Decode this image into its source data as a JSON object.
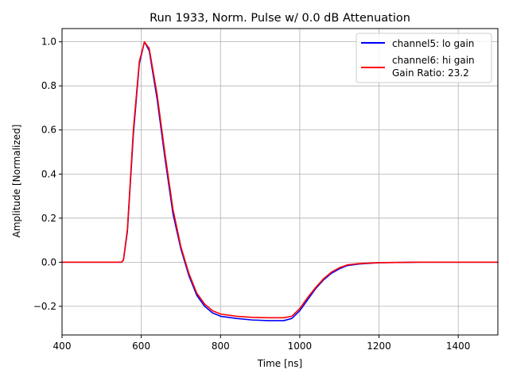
{
  "chart_data": {
    "type": "line",
    "title": "Run 1933, Norm. Pulse w/ 0.0 dB Attenuation",
    "xlabel": "Time [ns]",
    "ylabel": "Amplitude [Normalized]",
    "xlim": [
      400,
      1500
    ],
    "ylim": [
      -0.33,
      1.06
    ],
    "xticks": [
      400,
      600,
      800,
      1000,
      1200,
      1400
    ],
    "yticks": [
      -0.2,
      0.0,
      0.2,
      0.4,
      0.6,
      0.8,
      1.0
    ],
    "ytick_labels": [
      "−0.2",
      "0.0",
      "0.2",
      "0.4",
      "0.6",
      "0.8",
      "1.0"
    ],
    "grid": true,
    "legend_position": "top-right",
    "legend_extra": "Gain Ratio: 23.2",
    "series": [
      {
        "name": "channel5: lo gain",
        "color": "#0000ff",
        "x": [
          400,
          500,
          550,
          555,
          565,
          580,
          595,
          608,
          620,
          640,
          660,
          680,
          700,
          720,
          740,
          760,
          780,
          800,
          840,
          880,
          920,
          960,
          980,
          1000,
          1020,
          1040,
          1060,
          1080,
          1100,
          1120,
          1150,
          1200,
          1300,
          1400,
          1500
        ],
        "y": [
          0.0,
          0.0,
          0.0,
          0.01,
          0.14,
          0.58,
          0.9,
          1.0,
          0.96,
          0.74,
          0.47,
          0.22,
          0.06,
          -0.06,
          -0.15,
          -0.2,
          -0.23,
          -0.245,
          -0.255,
          -0.262,
          -0.265,
          -0.265,
          -0.255,
          -0.22,
          -0.17,
          -0.12,
          -0.08,
          -0.05,
          -0.03,
          -0.015,
          -0.008,
          -0.002,
          0.0,
          0.0,
          0.0
        ]
      },
      {
        "name": "channel6: hi gain",
        "color": "#ff0000",
        "x": [
          400,
          500,
          550,
          555,
          565,
          580,
          595,
          608,
          620,
          640,
          660,
          680,
          700,
          720,
          740,
          760,
          780,
          800,
          840,
          880,
          920,
          960,
          980,
          1000,
          1020,
          1040,
          1060,
          1080,
          1100,
          1120,
          1150,
          1200,
          1300,
          1400,
          1500
        ],
        "y": [
          0.0,
          0.0,
          0.0,
          0.01,
          0.15,
          0.6,
          0.91,
          1.0,
          0.97,
          0.76,
          0.49,
          0.24,
          0.07,
          -0.05,
          -0.14,
          -0.19,
          -0.22,
          -0.235,
          -0.245,
          -0.25,
          -0.252,
          -0.252,
          -0.245,
          -0.21,
          -0.16,
          -0.115,
          -0.075,
          -0.045,
          -0.025,
          -0.012,
          -0.006,
          -0.002,
          0.0,
          0.0,
          0.0
        ]
      }
    ]
  }
}
